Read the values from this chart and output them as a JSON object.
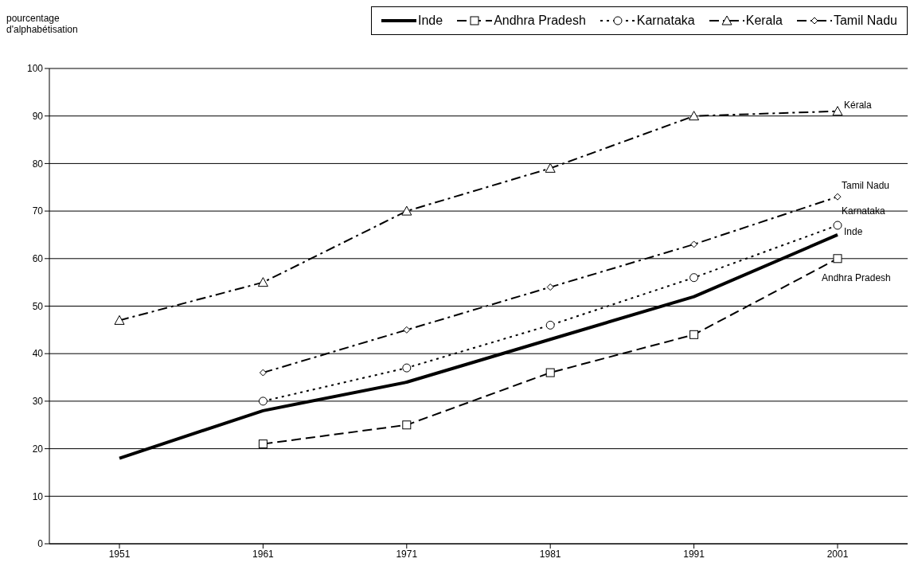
{
  "chart_data": {
    "type": "line",
    "ylabel": "pourcentage d'alphabétisation",
    "categories": [
      "1951",
      "1961",
      "1971",
      "1981",
      "1991",
      "2001"
    ],
    "series": [
      {
        "name": "Inde",
        "color": "#000000",
        "values": [
          18,
          28,
          34,
          43,
          52,
          65
        ],
        "marker": "none",
        "line_style": "solid"
      },
      {
        "name": "Andhra Pradesh",
        "color": "#000000",
        "values": [
          null,
          21,
          25,
          36,
          44,
          60
        ],
        "marker": "square",
        "line_style": "dashed"
      },
      {
        "name": "Karnataka",
        "color": "#000000",
        "values": [
          null,
          30,
          37,
          46,
          56,
          67
        ],
        "marker": "circle",
        "line_style": "dotted"
      },
      {
        "name": "Kerala",
        "color": "#000000",
        "values": [
          47,
          55,
          70,
          79,
          90,
          91
        ],
        "marker": "triangle",
        "line_style": "dashdot"
      },
      {
        "name": "Tamil Nadu",
        "color": "#000000",
        "values": [
          null,
          36,
          45,
          54,
          63,
          73
        ],
        "marker": "diamond",
        "line_style": "dashdot"
      }
    ],
    "ylim": [
      0,
      100
    ],
    "yticks": [
      0,
      10,
      20,
      30,
      40,
      50,
      60,
      70,
      80,
      90,
      100
    ],
    "grid": "y",
    "legend": "top right",
    "annotations": [
      {
        "text": "Kérala",
        "x": "2001",
        "y": 91
      },
      {
        "text": "Tamil Nadu",
        "x": "2001",
        "y": 73
      },
      {
        "text": "Karnataka",
        "x": "2001",
        "y": 67
      },
      {
        "text": "Inde",
        "x": "2001",
        "y": 65
      },
      {
        "text": "Andhra Pradesh",
        "x": "2001",
        "y": 60
      }
    ]
  }
}
